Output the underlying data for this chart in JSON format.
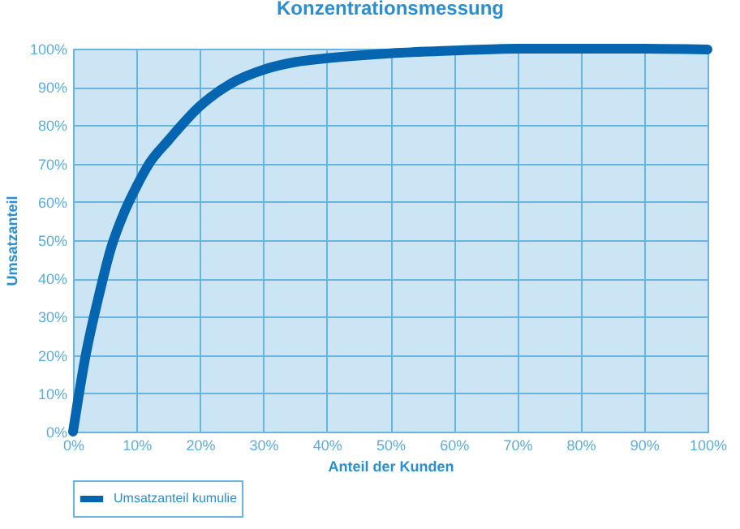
{
  "chart_data": {
    "type": "line",
    "title": "Konzentrationsmessung",
    "xlabel": "Anteil der Kunden",
    "ylabel": "Umsatzanteil",
    "x": [
      0,
      2,
      4,
      6,
      8,
      10,
      12,
      15,
      20,
      25,
      30,
      35,
      40,
      50,
      60,
      70,
      80,
      90,
      100
    ],
    "series": [
      {
        "name": "Umsatzanteil kumulie",
        "color": "#0565b0",
        "values": [
          0,
          20,
          35,
          48,
          57,
          64,
          70,
          76,
          85,
          91,
          94.5,
          96.5,
          97.5,
          98.8,
          99.5,
          100,
          100,
          100,
          99.8
        ]
      }
    ],
    "xlim": [
      0,
      100
    ],
    "ylim": [
      0,
      100
    ],
    "xticks": [
      {
        "value": 0,
        "label": "0%"
      },
      {
        "value": 10,
        "label": "10%"
      },
      {
        "value": 20,
        "label": "20%"
      },
      {
        "value": 30,
        "label": "30%"
      },
      {
        "value": 40,
        "label": "40%"
      },
      {
        "value": 50,
        "label": "50%"
      },
      {
        "value": 60,
        "label": "60%"
      },
      {
        "value": 70,
        "label": "70%"
      },
      {
        "value": 80,
        "label": "80%"
      },
      {
        "value": 90,
        "label": "90%"
      },
      {
        "value": 100,
        "label": "100%"
      }
    ],
    "yticks": [
      {
        "value": 0,
        "label": "0%"
      },
      {
        "value": 10,
        "label": "10%"
      },
      {
        "value": 20,
        "label": "20%"
      },
      {
        "value": 30,
        "label": "30%"
      },
      {
        "value": 40,
        "label": "40%"
      },
      {
        "value": 50,
        "label": "50%"
      },
      {
        "value": 60,
        "label": "60%"
      },
      {
        "value": 70,
        "label": "70%"
      },
      {
        "value": 80,
        "label": "80%"
      },
      {
        "value": 90,
        "label": "90%"
      },
      {
        "value": 100,
        "label": "100%"
      }
    ],
    "grid": true,
    "legend": "bottom",
    "marker": "none",
    "line_style": "solid"
  }
}
